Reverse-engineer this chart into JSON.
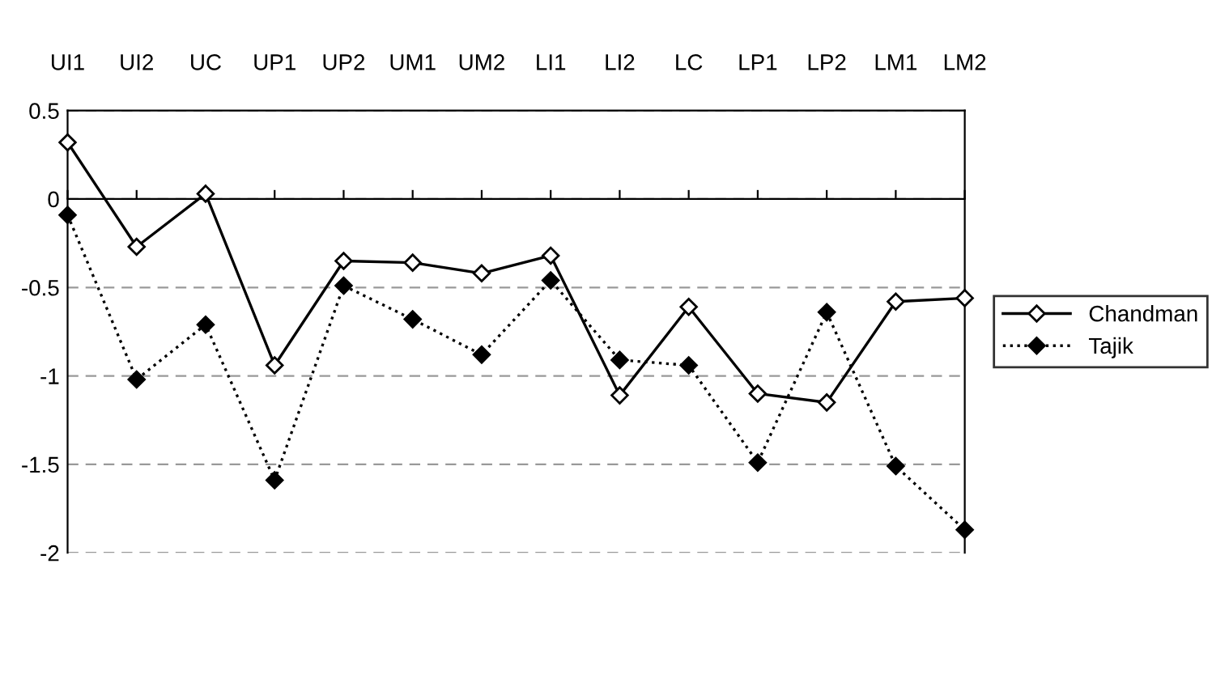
{
  "chart_data": {
    "type": "line",
    "categories": [
      "UI1",
      "UI2",
      "UC",
      "UP1",
      "UP2",
      "UM1",
      "UM2",
      "LI1",
      "LI2",
      "LC",
      "LP1",
      "LP2",
      "LM1",
      "LM2"
    ],
    "series": [
      {
        "name": "Chandman",
        "color": "#000000",
        "line_style": "solid",
        "values": [
          0.32,
          -0.27,
          0.03,
          -0.94,
          -0.35,
          -0.36,
          -0.42,
          -0.32,
          -1.11,
          -0.61,
          -1.1,
          -1.15,
          -0.58,
          -0.56
        ]
      },
      {
        "name": "Tajik",
        "color": "#000000",
        "line_style": "dotted",
        "values": [
          -0.09,
          -1.02,
          -0.71,
          -1.59,
          -0.49,
          -0.68,
          -0.88,
          -0.46,
          -0.91,
          -0.94,
          -1.49,
          -0.64,
          -1.51,
          -1.87
        ]
      }
    ],
    "ylim": [
      -2,
      0.5
    ],
    "yticks": [
      -2,
      -1.5,
      -1,
      -0.5,
      0,
      0.5
    ],
    "grid": "y",
    "legend": "right",
    "marker": "diamond"
  }
}
